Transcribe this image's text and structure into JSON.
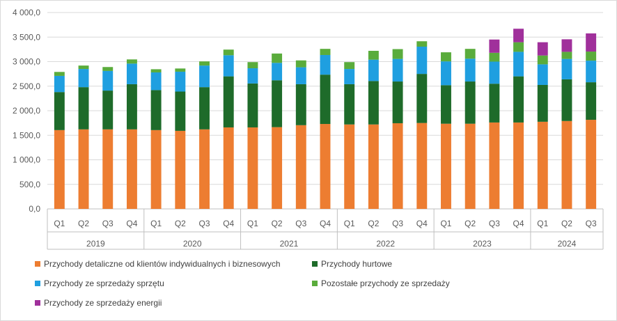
{
  "chart_data": {
    "type": "bar",
    "stacked": true,
    "title": "",
    "xlabel": "",
    "ylabel": "",
    "ylim": [
      0,
      4000
    ],
    "yticks": [
      "0,0",
      "500,0",
      "1 000,0",
      "1 500,0",
      "2 000,0",
      "2 500,0",
      "3 000,0",
      "3 500,0",
      "4 000,0"
    ],
    "grid": true,
    "legend_position": "bottom",
    "groups": [
      {
        "year": "2019",
        "quarters": [
          "Q1",
          "Q2",
          "Q3",
          "Q4"
        ]
      },
      {
        "year": "2020",
        "quarters": [
          "Q1",
          "Q2",
          "Q3",
          "Q4"
        ]
      },
      {
        "year": "2021",
        "quarters": [
          "Q1",
          "Q2",
          "Q3",
          "Q4"
        ]
      },
      {
        "year": "2022",
        "quarters": [
          "Q1",
          "Q2",
          "Q3",
          "Q4"
        ]
      },
      {
        "year": "2023",
        "quarters": [
          "Q1",
          "Q2",
          "Q3",
          "Q4"
        ]
      },
      {
        "year": "2024",
        "quarters": [
          "Q1",
          "Q2",
          "Q3"
        ]
      }
    ],
    "series": [
      {
        "name": "Przychody detaliczne od klientów indywidualnych i biznesowych",
        "color": "#ed7d31",
        "values": [
          1605,
          1620,
          1620,
          1620,
          1605,
          1590,
          1620,
          1660,
          1660,
          1665,
          1705,
          1730,
          1720,
          1720,
          1745,
          1750,
          1735,
          1735,
          1760,
          1760,
          1775,
          1790,
          1815
        ]
      },
      {
        "name": "Przychody hurtowe",
        "color": "#1e6b2a",
        "values": [
          775,
          860,
          790,
          920,
          815,
          800,
          860,
          1040,
          895,
          955,
          835,
          1005,
          820,
          885,
          850,
          1000,
          785,
          860,
          790,
          940,
          750,
          850,
          765
        ]
      },
      {
        "name": "Przychody ze sprzedaży sprzętu",
        "color": "#1f9fe0",
        "values": [
          330,
          370,
          400,
          420,
          360,
          405,
          440,
          430,
          310,
          355,
          345,
          400,
          310,
          435,
          460,
          555,
          485,
          465,
          450,
          500,
          420,
          415,
          440
        ]
      },
      {
        "name": "Pozostałe przychody ze sprzedaży",
        "color": "#5aac3c",
        "values": [
          80,
          70,
          80,
          85,
          65,
          65,
          85,
          115,
          125,
          190,
          140,
          125,
          140,
          180,
          200,
          110,
          185,
          200,
          180,
          195,
          180,
          145,
          185
        ]
      },
      {
        "name": "Przychody ze sprzedaży energii",
        "color": "#a0309b",
        "values": [
          0,
          0,
          0,
          0,
          0,
          0,
          0,
          0,
          0,
          0,
          0,
          0,
          0,
          0,
          0,
          0,
          0,
          0,
          270,
          275,
          270,
          255,
          370
        ]
      }
    ]
  }
}
